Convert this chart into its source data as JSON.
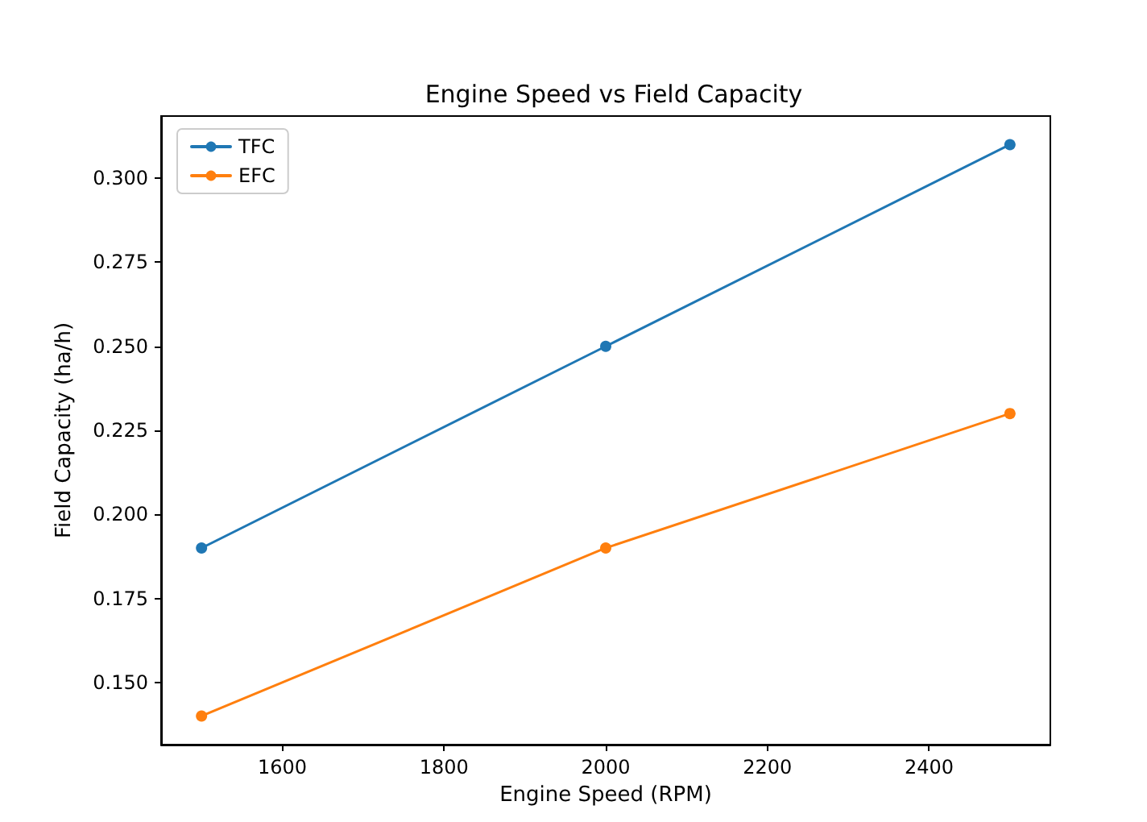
{
  "chart_data": {
    "type": "line",
    "title": "Engine Speed vs Field Capacity",
    "xlabel": "Engine Speed (RPM)",
    "ylabel": "Field Capacity (ha/h)",
    "x": [
      1500,
      2000,
      2500
    ],
    "series": [
      {
        "name": "TFC",
        "color": "#1f77b4",
        "values": [
          0.19,
          0.25,
          0.31
        ]
      },
      {
        "name": "EFC",
        "color": "#ff7f0e",
        "values": [
          0.14,
          0.19,
          0.23
        ]
      }
    ],
    "xlim": [
      1450,
      2550
    ],
    "xticks": [
      1600,
      1800,
      2000,
      2200,
      2400
    ],
    "ylim": [
      0.1315,
      0.3185
    ],
    "yticks": [
      {
        "value": 0.15,
        "label": "0.150"
      },
      {
        "value": 0.175,
        "label": "0.175"
      },
      {
        "value": 0.2,
        "label": "0.200"
      },
      {
        "value": 0.225,
        "label": "0.225"
      },
      {
        "value": 0.25,
        "label": "0.250"
      },
      {
        "value": 0.275,
        "label": "0.275"
      },
      {
        "value": 0.3,
        "label": "0.300"
      }
    ],
    "grid": false,
    "legend": "top left",
    "marker": "circle",
    "line_style": "solid"
  }
}
